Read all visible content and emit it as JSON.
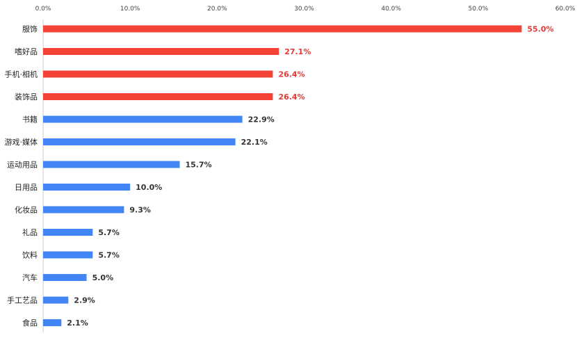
{
  "chart_data": {
    "type": "bar",
    "orientation": "horizontal",
    "title": "",
    "xlabel": "",
    "ylabel": "",
    "xlim": [
      0,
      60
    ],
    "x_ticks": [
      "0.0%",
      "10.0%",
      "20.0%",
      "30.0%",
      "40.0%",
      "50.0%",
      "60.0%"
    ],
    "x_axis_position": "top",
    "grid": false,
    "legend": "none",
    "categories": [
      "服饰",
      "嗜好品",
      "手机·相机",
      "装饰品",
      "书籍",
      "游戏·媒体",
      "运动用品",
      "日用品",
      "化妆品",
      "礼品",
      "饮料",
      "汽车",
      "手工艺品",
      "食品"
    ],
    "values": [
      55.0,
      27.1,
      26.4,
      26.4,
      22.9,
      22.1,
      15.7,
      10.0,
      9.3,
      5.7,
      5.7,
      5.0,
      2.9,
      2.1
    ],
    "value_labels": [
      "55.0%",
      "27.1%",
      "26.4%",
      "26.4%",
      "22.9%",
      "22.1%",
      "15.7%",
      "10.0%",
      "9.3%",
      "5.7%",
      "5.7%",
      "5.0%",
      "2.9%",
      "2.1%"
    ],
    "highlight_count": 4,
    "colors": {
      "highlight": "#f44336",
      "normal": "#4285f4",
      "highlight_label": "#e53935",
      "normal_label": "#333333",
      "axis": "#cccccc"
    }
  }
}
